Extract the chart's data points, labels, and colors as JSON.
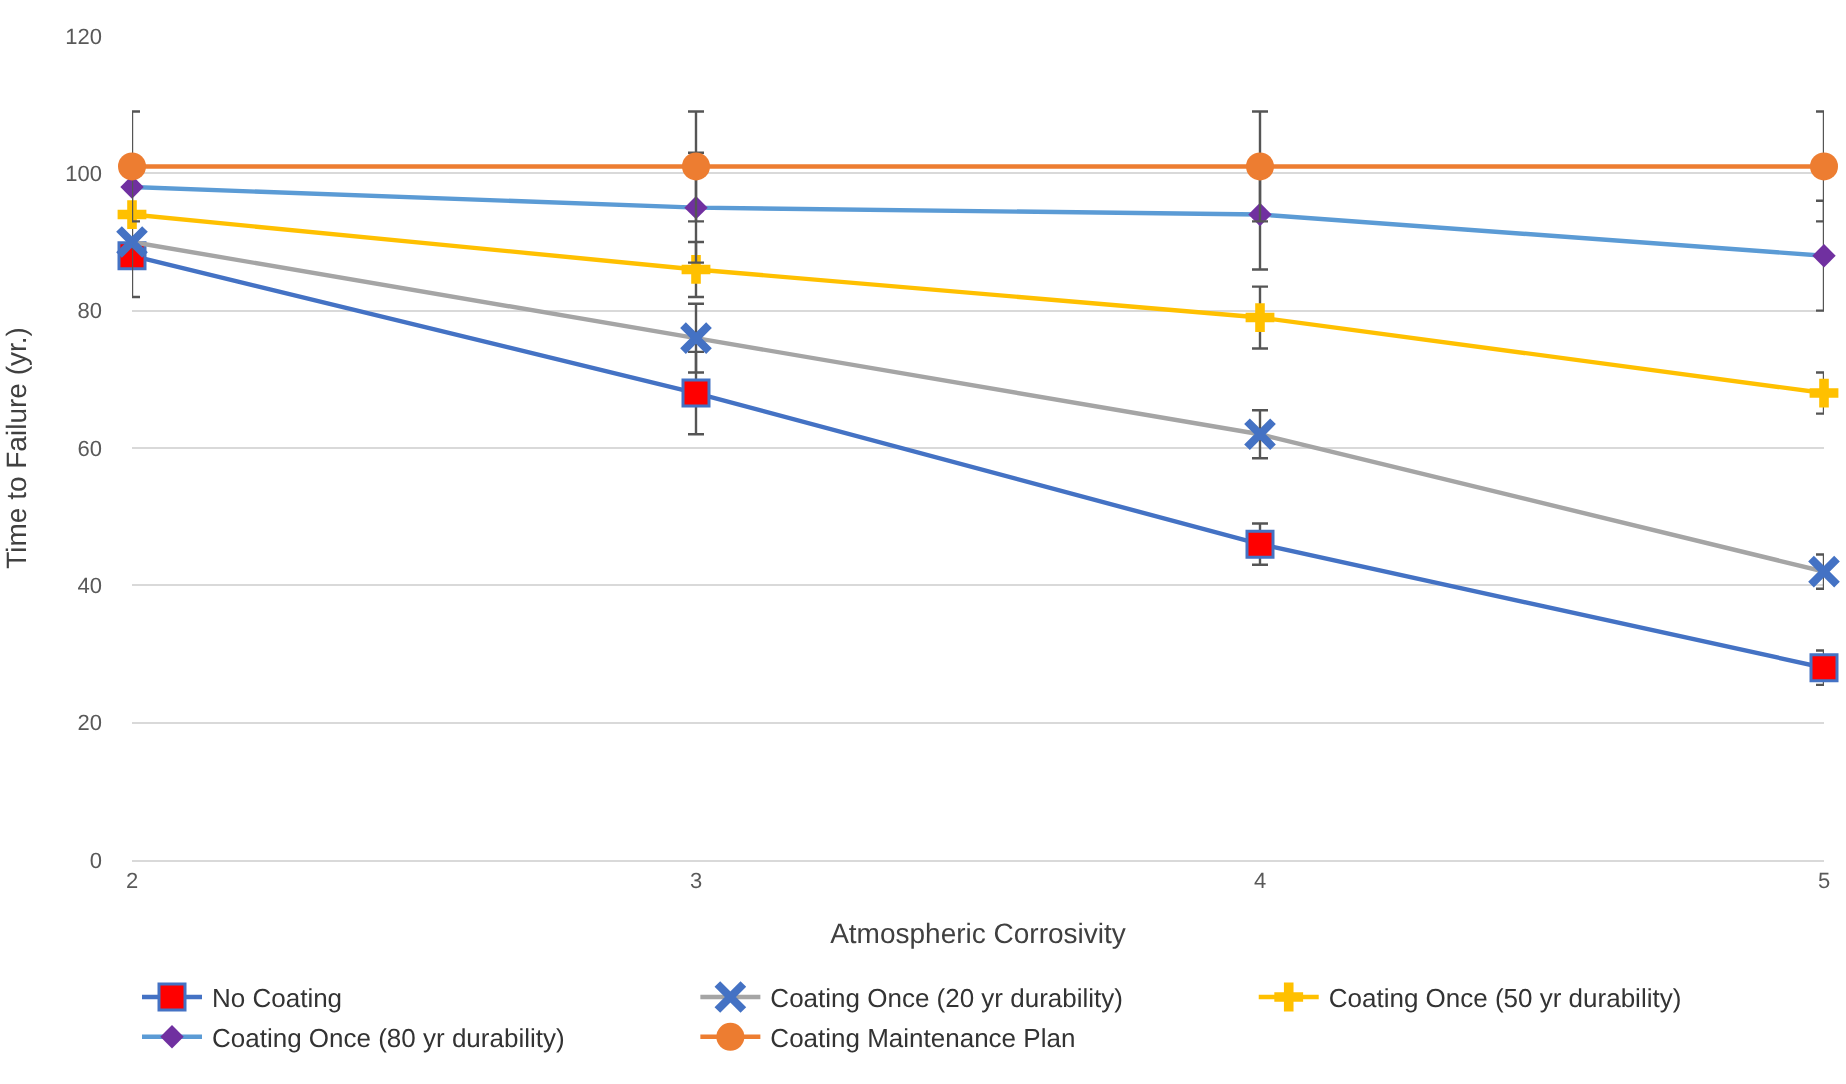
{
  "chart_data": {
    "type": "line",
    "xlabel": "Atmospheric Corrosivity",
    "ylabel": "Time to Failure (yr.)",
    "x": [
      2,
      3,
      4,
      5
    ],
    "xlim": [
      2,
      5
    ],
    "xticks": [
      2,
      3,
      4,
      5
    ],
    "ylim": [
      0,
      120
    ],
    "yticks": [
      0,
      20,
      40,
      60,
      80,
      100,
      120
    ],
    "grid": "y",
    "legend": "bottom",
    "series": [
      {
        "name": "No Coating",
        "color": "#4472c4",
        "colors": [
          "#ff0000",
          "#ff0000",
          "#ff0000",
          "#ff0000"
        ],
        "marker": "square",
        "values": [
          88,
          68,
          46,
          28
        ],
        "errors": [
          null,
          6,
          3,
          2.5
        ]
      },
      {
        "name": "Coating Once (20 yr durability)",
        "color": "#a5a5a5",
        "colors": [
          "#4472c4",
          "#4472c4",
          "#4472c4",
          "#4472c4"
        ],
        "marker": "cross",
        "values": [
          90,
          76,
          62,
          42
        ],
        "errors": [
          8,
          5,
          3.5,
          2.5
        ]
      },
      {
        "name": "Coating Once (50 yr durability)",
        "color": "#ffc000",
        "colors": [
          "#ffc000",
          "#ffc000",
          "#ffc000",
          "#ffc000"
        ],
        "marker": "plus",
        "values": [
          94,
          86,
          79,
          68
        ],
        "errors": [
          null,
          4,
          4.5,
          3
        ]
      },
      {
        "name": "Coating Once (80 yr durability)",
        "color": "#5b9bd5",
        "colors": [
          "#7030a0",
          "#7030a0",
          "#7030a0",
          "#7030a0"
        ],
        "marker": "diamond",
        "values": [
          98,
          95,
          94,
          88
        ],
        "errors": [
          null,
          8,
          8,
          8
        ]
      },
      {
        "name": "Coating Maintenance Plan",
        "color": "#ed7d31",
        "colors": [
          "#ed7d31",
          "#ed7d31",
          "#ed7d31",
          "#ed7d31"
        ],
        "marker": "circle",
        "values": [
          101,
          101,
          101,
          101
        ],
        "errors": [
          8,
          8,
          8,
          8
        ]
      }
    ]
  }
}
